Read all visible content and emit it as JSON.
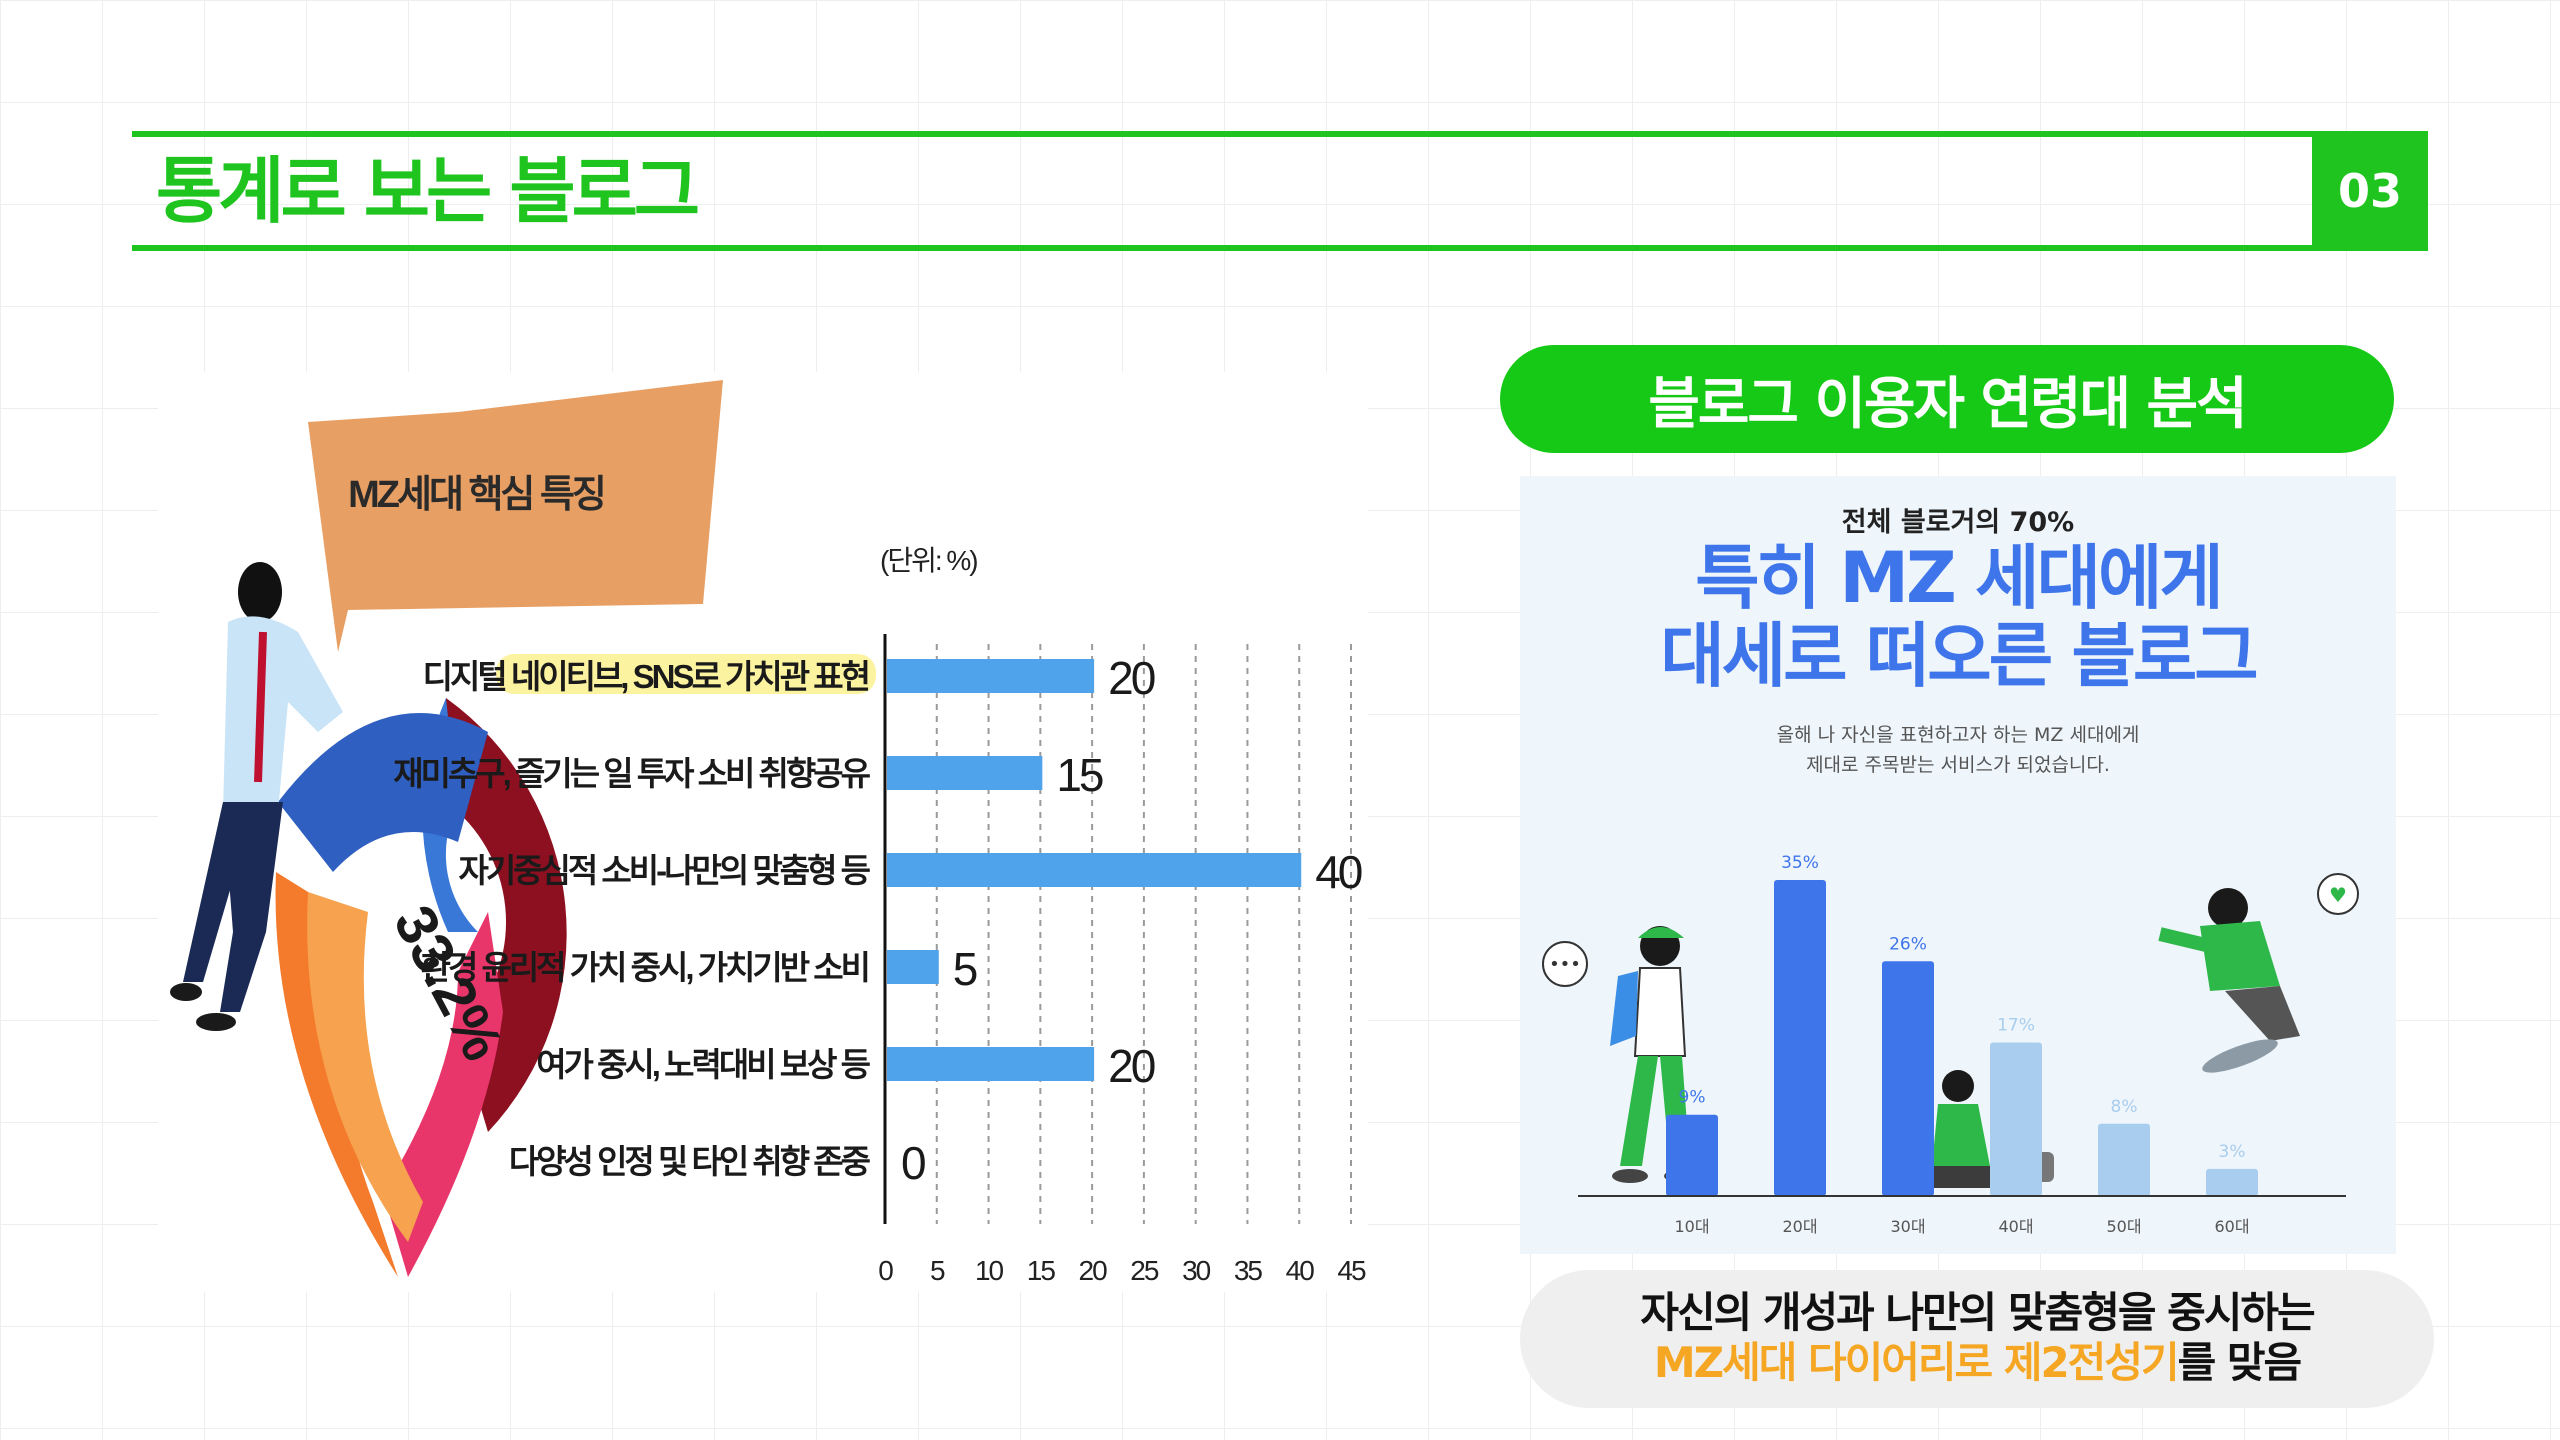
{
  "header": {
    "title": "통계로 보는 블로그",
    "page_number": "03"
  },
  "left_chart": {
    "callout_label": "MZ세대 핵심 특징",
    "donut_label": "33.2%",
    "colors": {
      "bar": "#4fa3ea",
      "highlight": "#fbf3a0",
      "callout": "#e89f64"
    }
  },
  "right": {
    "pill_title": "블로그 이용자 연령대 분석",
    "infographic": {
      "subheading": "전체 블로거의 70%",
      "headline_line1": "특히 MZ 세대에게",
      "headline_line2": "대세로 떠오른 블로그",
      "desc_line1": "올해 나 자신을 표현하고자 하는 MZ 세대에게",
      "desc_line2": "제대로 주목받는 서비스가 되었습니다.",
      "colors": {
        "dark_bar": "#3f75ea",
        "light_bar": "#a9cdee",
        "headline": "#3f75ea"
      }
    },
    "bottom_line1": "자신의 개성과 나만의 맞춤형을 중시하는",
    "bottom_line2_accent": "MZ세대 다이어리로 제2전성기",
    "bottom_line2_rest": "를 맞음"
  },
  "chart_data": [
    {
      "type": "bar",
      "orientation": "horizontal",
      "unit_label": "(단위: %)",
      "categories": [
        "디지털 네이티브, SNS로 가치관 표현",
        "재미추구, 즐기는 일 투자 소비 취향공유",
        "자기중심적 소비-나만의 맞춤형 등",
        "환경 윤리적 가치 중시, 가치기반 소비",
        "여가 중시, 노력대비 보상 등",
        "다양성 인정 및 타인 취향 존중"
      ],
      "values": [
        20,
        15,
        40,
        5,
        20,
        0
      ],
      "xlim": [
        0,
        45
      ],
      "xticks": [
        0,
        5,
        10,
        15,
        20,
        25,
        30,
        35,
        40,
        45
      ],
      "grid": "vertical dashed",
      "highlighted_category": "디지털 네이티브, SNS로 가치관 표현"
    },
    {
      "type": "bar",
      "categories": [
        "10대",
        "20대",
        "30대",
        "40대",
        "50대",
        "60대"
      ],
      "values": [
        9,
        35,
        26,
        17,
        8,
        3
      ],
      "value_labels": [
        "9%",
        "35%",
        "26%",
        "17%",
        "8%",
        "3%"
      ],
      "ylim": [
        0,
        35
      ],
      "emphasis": [
        "dark",
        "dark",
        "dark",
        "light",
        "light",
        "light"
      ]
    }
  ]
}
